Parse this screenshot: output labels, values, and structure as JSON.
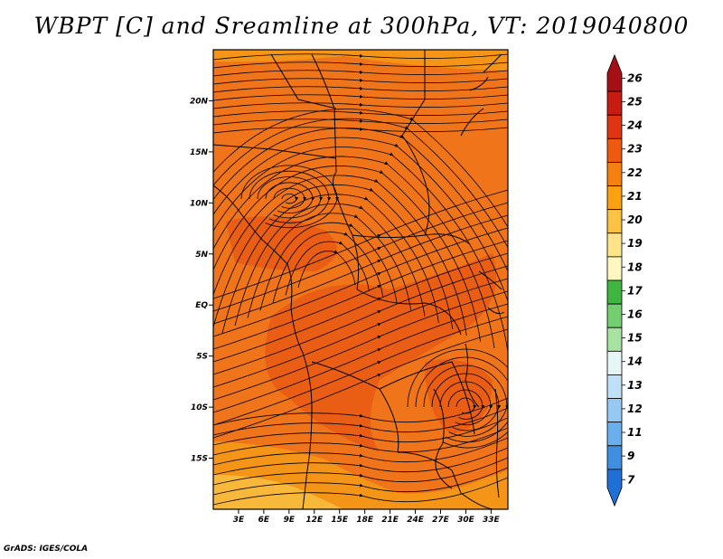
{
  "title": "WBPT [C] and Sreamline at 300hPa, VT: 2019040800",
  "credit": "GrADS: IGES/COLA",
  "map": {
    "lat_ticks": [
      {
        "value": 20,
        "label": "20N"
      },
      {
        "value": 15,
        "label": "15N"
      },
      {
        "value": 10,
        "label": "10N"
      },
      {
        "value": 5,
        "label": "5N"
      },
      {
        "value": 0,
        "label": "EQ"
      },
      {
        "value": -5,
        "label": "5S"
      },
      {
        "value": -10,
        "label": "10S"
      },
      {
        "value": -15,
        "label": "15S"
      }
    ],
    "lon_ticks": [
      {
        "value": 3,
        "label": "3E"
      },
      {
        "value": 6,
        "label": "6E"
      },
      {
        "value": 9,
        "label": "9E"
      },
      {
        "value": 12,
        "label": "12E"
      },
      {
        "value": 15,
        "label": "15E"
      },
      {
        "value": 18,
        "label": "18E"
      },
      {
        "value": 21,
        "label": "21E"
      },
      {
        "value": 24,
        "label": "24E"
      },
      {
        "value": 27,
        "label": "27E"
      },
      {
        "value": 30,
        "label": "30E"
      },
      {
        "value": 33,
        "label": "33E"
      }
    ],
    "lon_range": [
      0,
      35
    ],
    "lat_range": [
      -20,
      25
    ]
  },
  "colorbar": {
    "labels": [
      "26",
      "25",
      "24",
      "23",
      "22",
      "21",
      "20",
      "19",
      "18",
      "17",
      "16",
      "15",
      "14",
      "13",
      "12",
      "11",
      "9",
      "7"
    ],
    "colors": [
      "#a50f15",
      "#c81c12",
      "#e03512",
      "#ee5a0f",
      "#f6800e",
      "#f9a10f",
      "#fbc344",
      "#fde48a",
      "#fdf6c0",
      "#3fb63f",
      "#74cd70",
      "#a8e2a0",
      "#e6f6f5",
      "#bfe0f7",
      "#96c9f2",
      "#6aaeeb",
      "#3f8ee0",
      "#1f6fd6"
    ]
  },
  "field_colors": {
    "deep": "#e85a14",
    "mid": "#f07419",
    "warm": "#f49518",
    "yellow": "#f8b83a"
  }
}
